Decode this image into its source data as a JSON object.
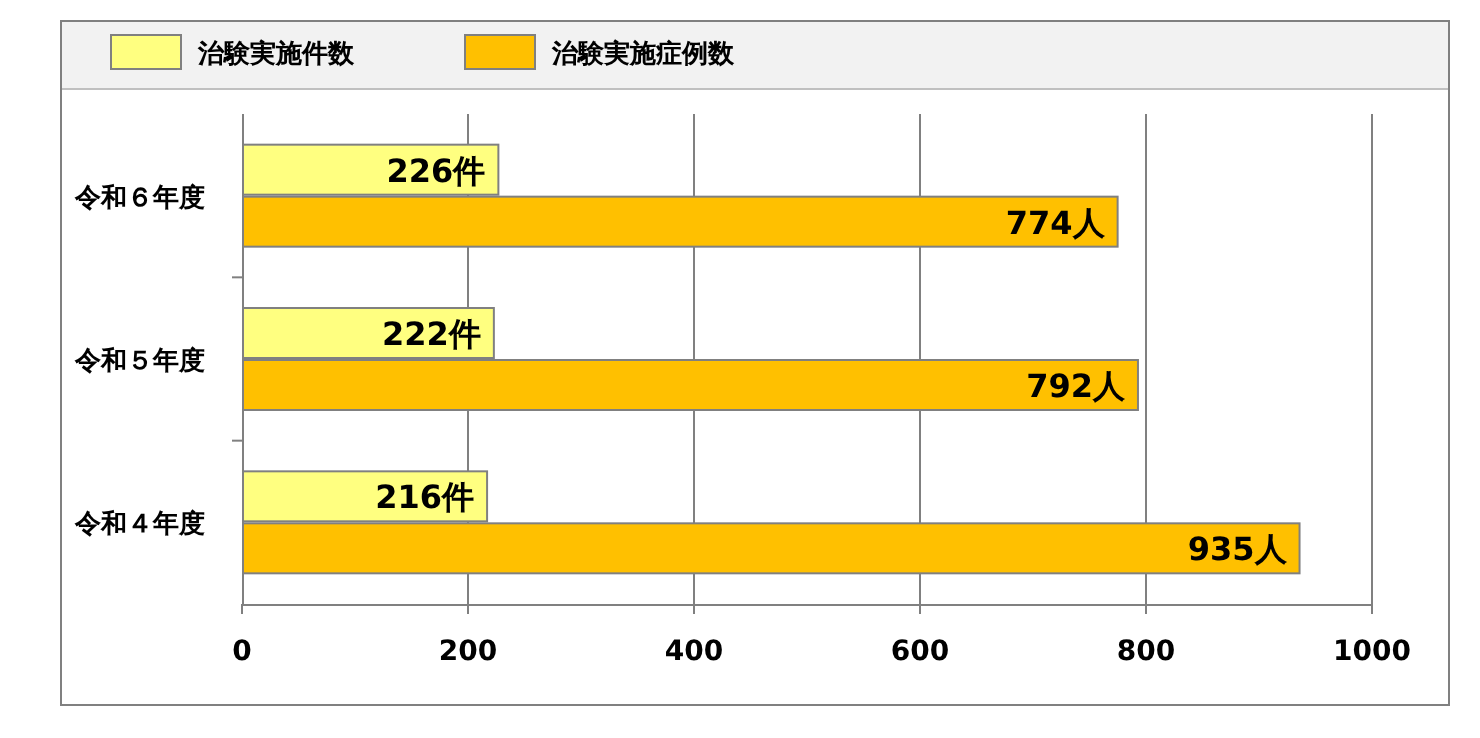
{
  "chart_data": {
    "type": "bar",
    "orientation": "horizontal",
    "categories": [
      "令和６年度",
      "令和５年度",
      "令和４年度"
    ],
    "series": [
      {
        "name": "治験実施件数",
        "color": "#ffff80",
        "values": [
          226,
          222,
          216
        ],
        "value_labels": [
          "226件",
          "222件",
          "216件"
        ]
      },
      {
        "name": "治験実施症例数",
        "color": "#ffc000",
        "values": [
          774,
          792,
          935
        ],
        "value_labels": [
          "774人",
          "792人",
          "935人"
        ]
      }
    ],
    "xlim": [
      0,
      1000
    ],
    "xticks": [
      0,
      200,
      400,
      600,
      800,
      1000
    ],
    "grid": "x",
    "legend": "top"
  }
}
